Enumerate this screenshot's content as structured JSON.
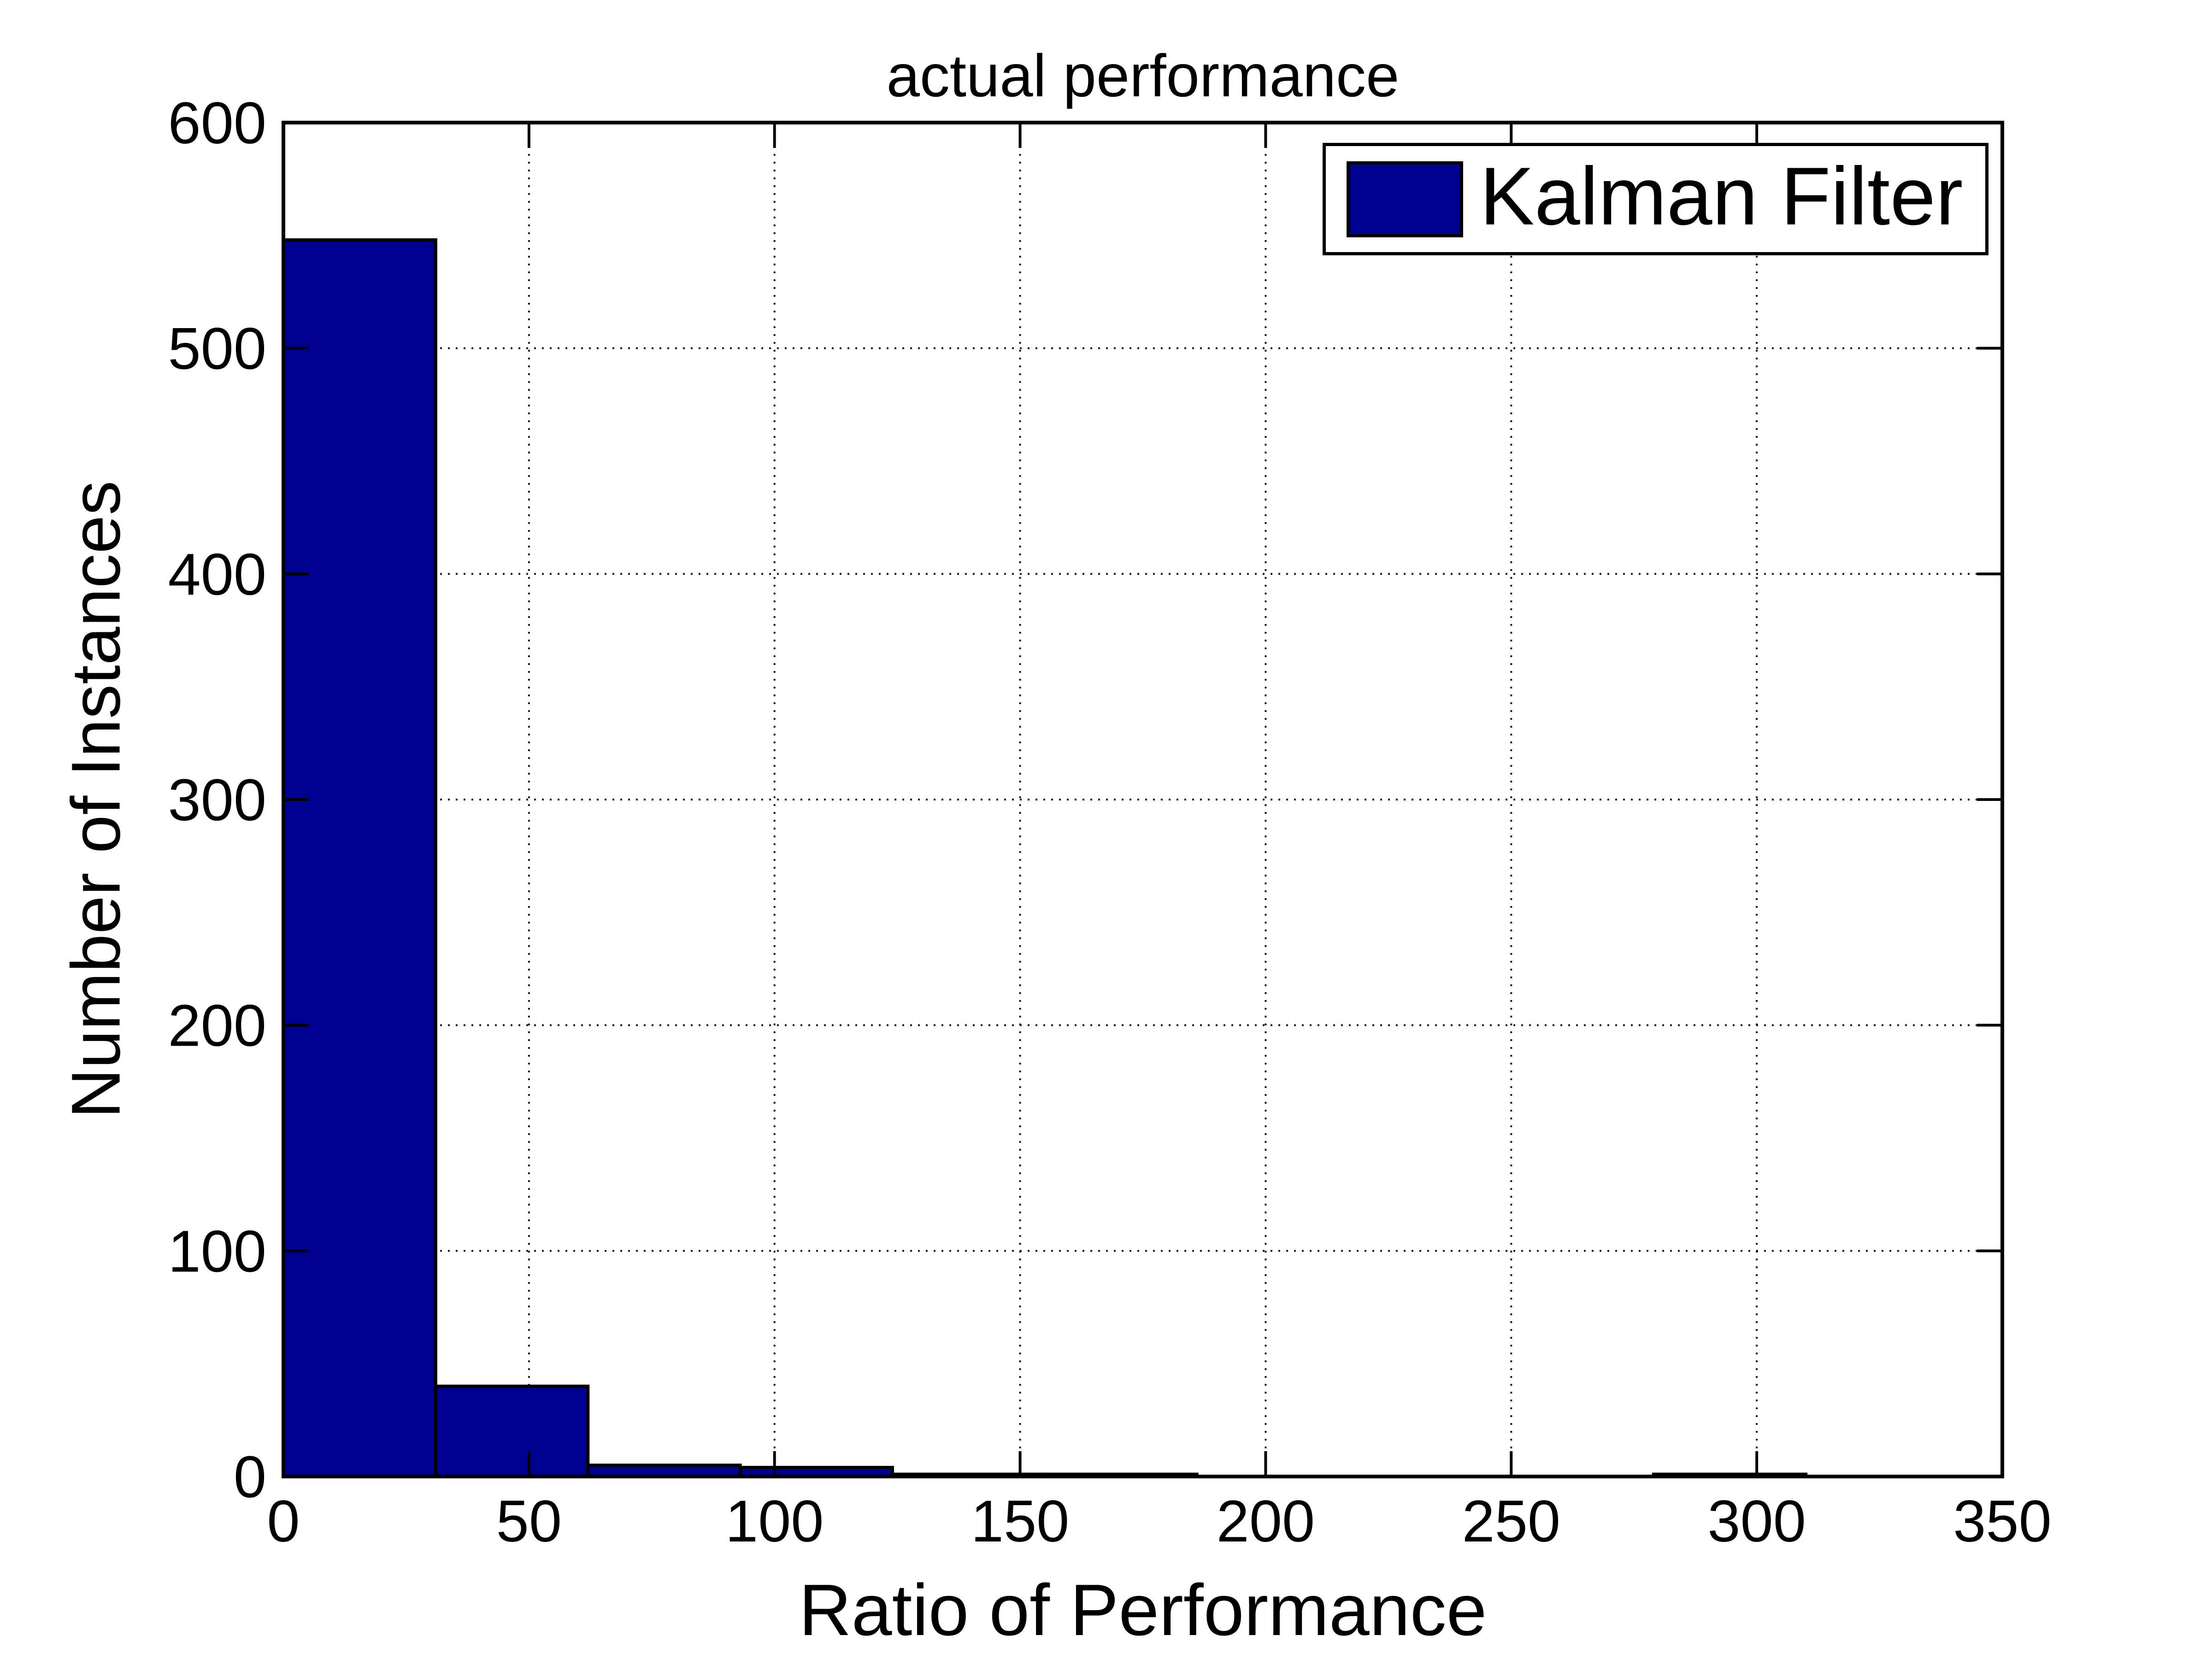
{
  "chart_data": {
    "type": "bar",
    "subtype": "histogram",
    "title": "actual performance",
    "xlabel": "Ratio of Performance",
    "ylabel": "Number of Instances",
    "xlim": [
      0,
      350
    ],
    "ylim": [
      0,
      600
    ],
    "xticks": [
      "0",
      "50",
      "100",
      "150",
      "200",
      "250",
      "300",
      "350"
    ],
    "xtick_values": [
      0,
      50,
      100,
      150,
      200,
      250,
      300,
      350
    ],
    "yticks": [
      "0",
      "100",
      "200",
      "300",
      "400",
      "500",
      "600"
    ],
    "ytick_values": [
      0,
      100,
      200,
      300,
      400,
      500,
      600
    ],
    "grid": true,
    "grid_style": "dotted",
    "bin_edges": [
      0,
      31,
      62,
      93,
      124,
      155,
      186,
      217,
      248,
      279,
      310
    ],
    "series": [
      {
        "name": "Kalman Filter",
        "values": [
          548,
          40,
          5,
          4,
          1,
          1,
          0,
          0,
          0,
          1
        ]
      }
    ],
    "legend": {
      "position": "top-right",
      "entries": [
        {
          "label": "Kalman Filter",
          "color": "#000090"
        }
      ]
    },
    "colors": {
      "bar_fill": "#000090",
      "bar_edge": "#000000",
      "axis": "#000000",
      "grid": "#000000",
      "background": "#ffffff",
      "text": "#000000"
    }
  }
}
